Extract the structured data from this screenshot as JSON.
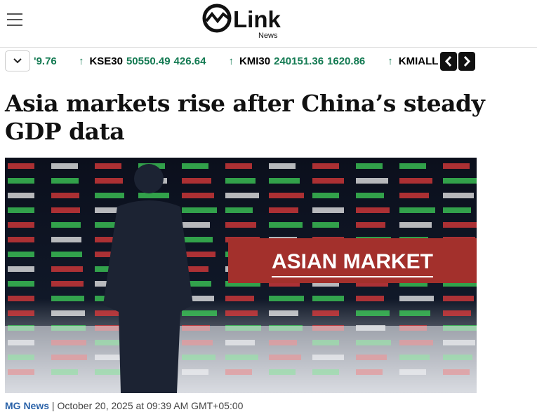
{
  "header": {
    "logo": "Link",
    "logo_sub": "News"
  },
  "ticker": {
    "partial_value": "'9.76",
    "items": [
      {
        "arrow": "↑",
        "symbol": "KSE30",
        "price": "50550.49",
        "change": "426.64"
      },
      {
        "arrow": "↑",
        "symbol": "KMI30",
        "price": "240151.36",
        "change": "1620.86"
      },
      {
        "arrow": "↑",
        "symbol": "KMIALL"
      }
    ]
  },
  "article": {
    "headline": "Asia markets rise after China’s steady GDP data",
    "image_banner": "ASIAN MARKET",
    "source": "MG News",
    "separator": "|",
    "date": "October 20, 2025 at 09:39 AM GMT+05:00"
  }
}
